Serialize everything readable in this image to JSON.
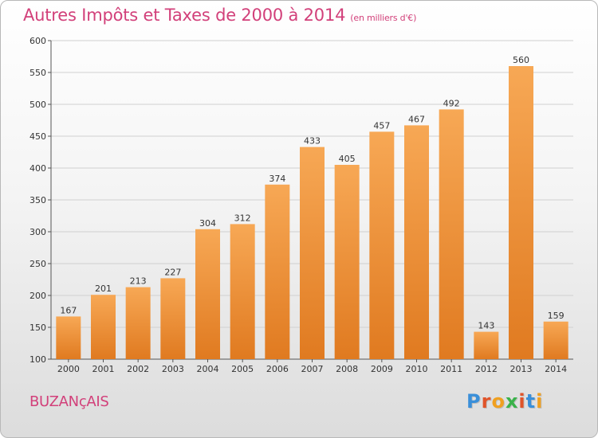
{
  "page": {
    "title": "Autres Impôts et Taxes de 2000 à 2014",
    "subtitle": "(en milliers d'€)",
    "town": "BUZANçAIS",
    "logo": "Proxiti"
  },
  "colors": {
    "title": "#d2407a",
    "bar_light": "#f7a855",
    "bar_dark": "#e07a20",
    "grid": "#d0d0d0",
    "logo_letters": [
      "#3a8fd9",
      "#e0542a",
      "#f0a020",
      "#3ab24a",
      "#e0542a",
      "#3a8fd9",
      "#f0a020"
    ]
  },
  "chart_data": {
    "type": "bar",
    "categories": [
      "2000",
      "2001",
      "2002",
      "2003",
      "2004",
      "2005",
      "2006",
      "2007",
      "2008",
      "2009",
      "2010",
      "2011",
      "2012",
      "2013",
      "2014"
    ],
    "values": [
      167,
      201,
      213,
      227,
      304,
      312,
      374,
      433,
      405,
      457,
      467,
      492,
      143,
      560,
      159
    ],
    "ylim": [
      100,
      600
    ],
    "yticks": [
      100,
      150,
      200,
      250,
      300,
      350,
      400,
      450,
      500,
      550,
      600
    ],
    "grid": true
  }
}
